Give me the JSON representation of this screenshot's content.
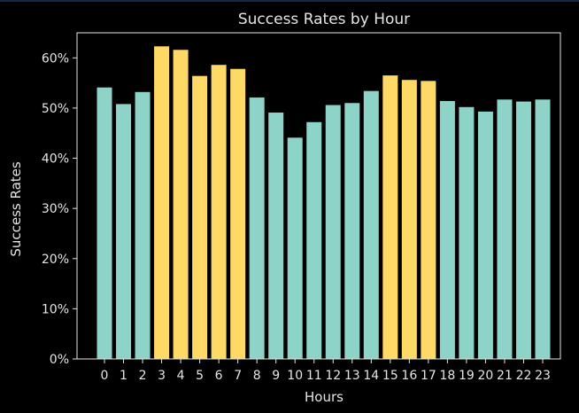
{
  "chart_data": {
    "type": "bar",
    "title": "Success Rates by Hour",
    "xlabel": "Hours",
    "ylabel": "Success Rates",
    "categories": [
      "0",
      "1",
      "2",
      "3",
      "4",
      "5",
      "6",
      "7",
      "8",
      "9",
      "10",
      "11",
      "12",
      "13",
      "14",
      "15",
      "16",
      "17",
      "18",
      "19",
      "20",
      "21",
      "22",
      "23"
    ],
    "values": [
      54.1,
      50.8,
      53.2,
      62.3,
      61.6,
      56.4,
      58.6,
      57.8,
      52.1,
      49.1,
      44.1,
      47.2,
      50.6,
      51.0,
      53.4,
      56.5,
      55.6,
      55.4,
      51.4,
      50.2,
      49.3,
      51.7,
      51.3,
      51.7
    ],
    "highlighted": [
      "3",
      "4",
      "5",
      "6",
      "7",
      "15",
      "16",
      "17"
    ],
    "ylim": [
      0,
      65
    ],
    "yticks": [
      0,
      10,
      20,
      30,
      40,
      50,
      60
    ],
    "ytick_labels": [
      "0%",
      "10%",
      "20%",
      "30%",
      "40%",
      "50%",
      "60%"
    ],
    "grid": false,
    "colors": {
      "normal": "#8dd3c7",
      "highlight": "#ffd966",
      "background": "#000000",
      "axes": "#e6e6e6",
      "text": "#e6e6e6"
    }
  }
}
